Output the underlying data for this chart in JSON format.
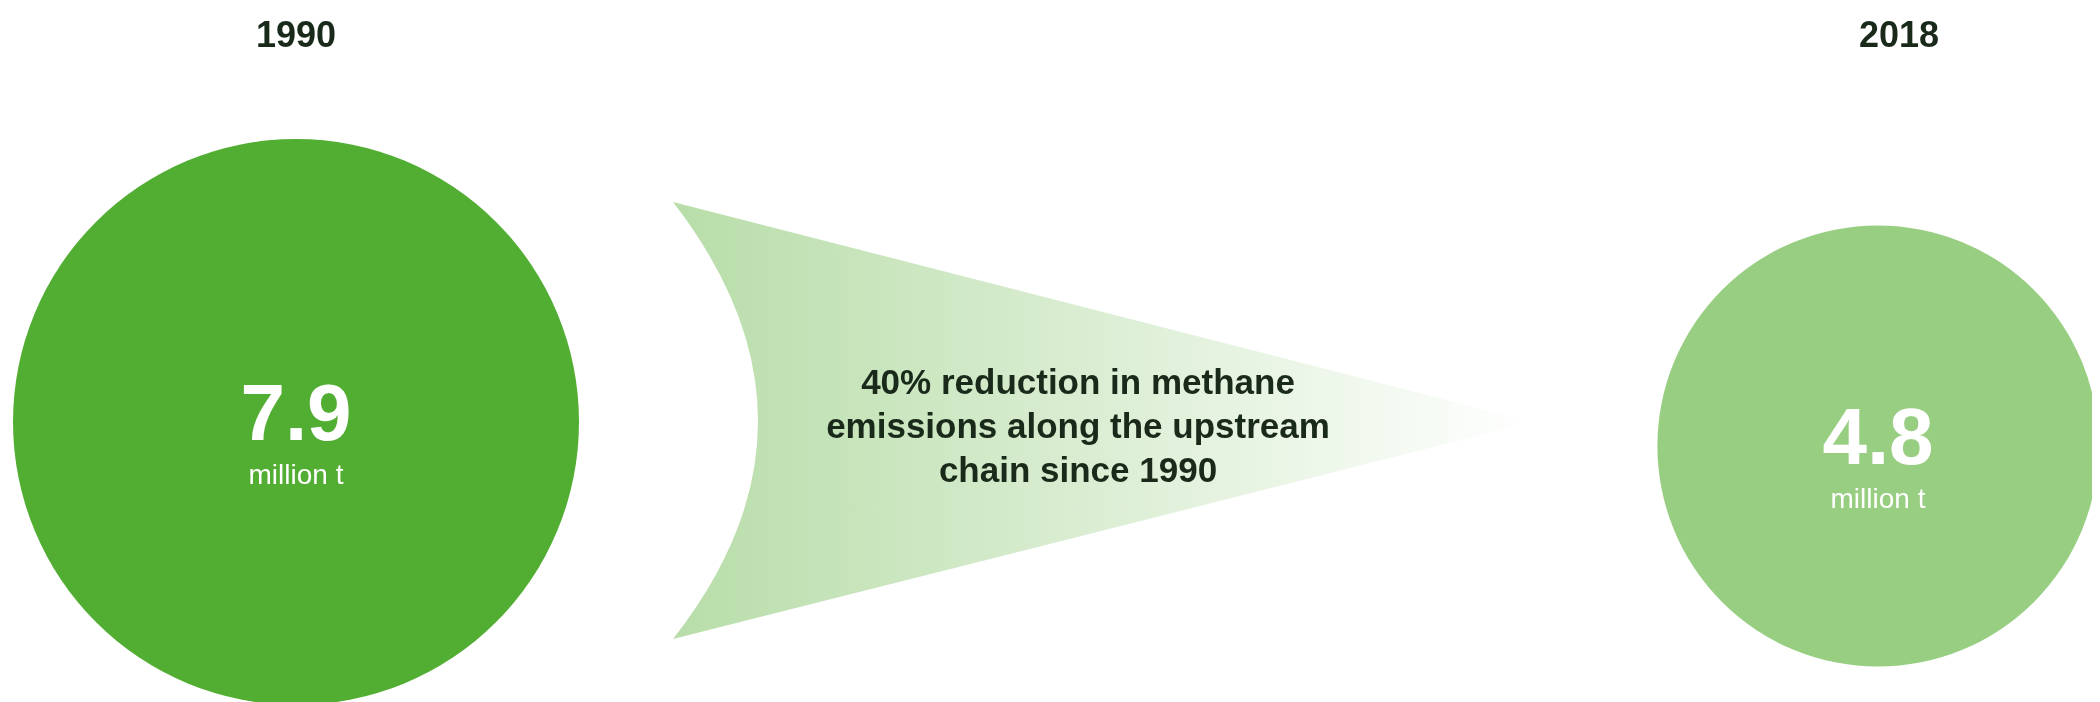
{
  "chart_data": {
    "type": "other",
    "categories": [
      "1990",
      "2018"
    ],
    "values": [
      7.9,
      4.8
    ],
    "colors": [
      "#52ae32",
      "#98ce82"
    ],
    "ylabel": "million t",
    "data_labels": true,
    "annotations": [
      "40% reduction in methane emissions along the upstream chain since 1990"
    ]
  }
}
